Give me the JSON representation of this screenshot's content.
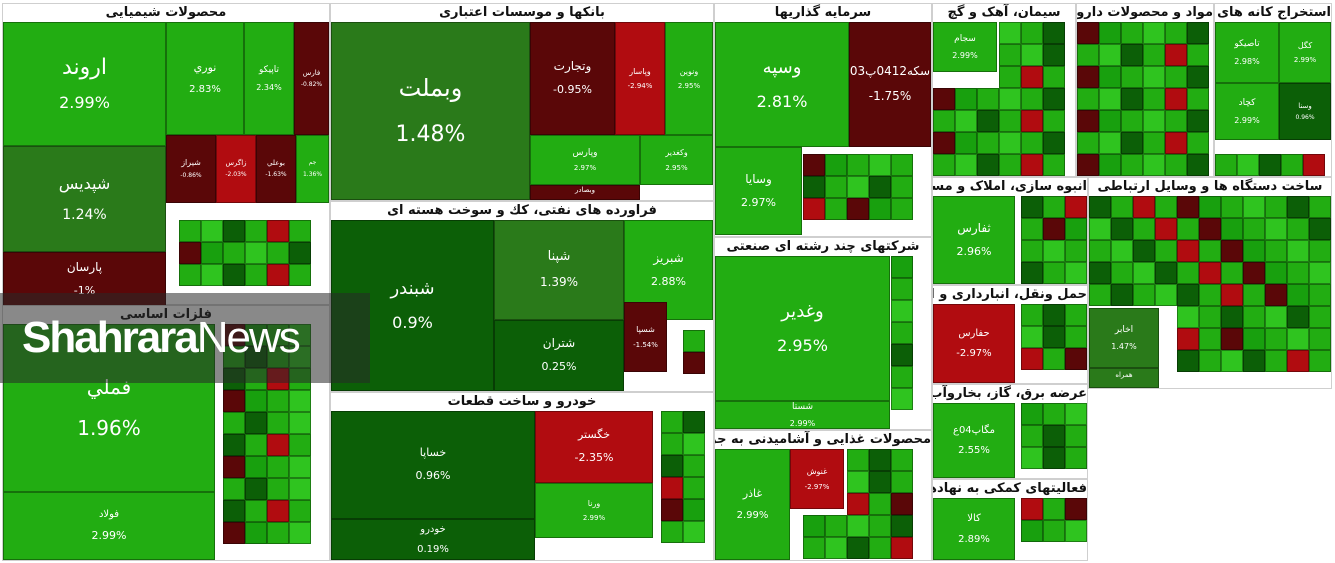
{
  "brand": {
    "word_bold": "Shahrara",
    "word_regular": "News"
  },
  "colors": {
    "strong_positive": "#18a00e",
    "positive": "#22ad12",
    "light_positive": "#2fc41f",
    "dark_positive": "#0c5f07",
    "neutral": "#2a7a1a",
    "negative": "#b10c10",
    "dark_negative": "#5a0708"
  },
  "sectors": [
    {
      "title": "محصولات شیمیایی",
      "tiles": [
        {
          "name": "اروند",
          "change": "2.99%",
          "tone": "positive"
        },
        {
          "name": "نوري",
          "change": "2.83%",
          "tone": "positive"
        },
        {
          "name": "تاپيكو",
          "change": "2.34%",
          "tone": "positive"
        },
        {
          "name": "فارس",
          "change": "-0.82%",
          "tone": "dark_negative"
        },
        {
          "name": "شپديس",
          "change": "1.24%",
          "tone": "neutral"
        },
        {
          "name": "شيراز",
          "change": "-0.86%",
          "tone": "dark_negative"
        },
        {
          "name": "زاگرس",
          "change": "-2.03%",
          "tone": "negative"
        },
        {
          "name": "بوعلي",
          "change": "-1.63%",
          "tone": "dark_negative"
        },
        {
          "name": "جم",
          "change": "1.36%",
          "tone": "positive"
        },
        {
          "name": "پارسان",
          "change": "-1%",
          "tone": "dark_negative"
        }
      ]
    },
    {
      "title": "بانکها و موسسات اعتباری",
      "tiles": [
        {
          "name": "وبملت",
          "change": "1.48%",
          "tone": "neutral"
        },
        {
          "name": "وتجارت",
          "change": "-0.95%",
          "tone": "dark_negative"
        },
        {
          "name": "وپاسار",
          "change": "-2.94%",
          "tone": "negative"
        },
        {
          "name": "ونوين",
          "change": "2.95%",
          "tone": "positive"
        },
        {
          "name": "وپارس",
          "change": "2.97%",
          "tone": "positive"
        },
        {
          "name": "وكغدير",
          "change": "2.95%",
          "tone": "positive"
        },
        {
          "name": "وبصادر",
          "change": "",
          "tone": "dark_negative"
        }
      ]
    },
    {
      "title": "سرمایه گذاریها",
      "tiles": [
        {
          "name": "وسپه",
          "change": "2.81%",
          "tone": "positive"
        },
        {
          "name": "سكه0412پ03",
          "change": "-1.75%",
          "tone": "dark_negative"
        },
        {
          "name": "وسايا",
          "change": "2.97%",
          "tone": "positive"
        }
      ]
    },
    {
      "title": "سیمان، آهک و گچ",
      "tiles": [
        {
          "name": "سجام",
          "change": "2.99%",
          "tone": "positive"
        }
      ]
    },
    {
      "title": "مواد و محصولات دارویی",
      "tiles": []
    },
    {
      "title": "استخراج کانه های فلزی",
      "tiles": [
        {
          "name": "تاصيكو",
          "change": "2.98%",
          "tone": "positive"
        },
        {
          "name": "كگل",
          "change": "2.99%",
          "tone": "positive"
        },
        {
          "name": "كچاد",
          "change": "2.99%",
          "tone": "positive"
        },
        {
          "name": "وسنا",
          "change": "0.96%",
          "tone": "dark_positive"
        }
      ]
    },
    {
      "title": "فراورده های نفتی، کك و سوخت هسته ای",
      "tiles": [
        {
          "name": "شبندر",
          "change": "0.9%",
          "tone": "dark_positive"
        },
        {
          "name": "شپنا",
          "change": "1.39%",
          "tone": "neutral"
        },
        {
          "name": "شبريز",
          "change": "2.88%",
          "tone": "positive"
        },
        {
          "name": "شتران",
          "change": "0.25%",
          "tone": "dark_positive"
        },
        {
          "name": "شسپا",
          "change": "-1.54%",
          "tone": "dark_negative"
        }
      ]
    },
    {
      "title": "شرکتهای چند رشته ای صنعتی",
      "tiles": [
        {
          "name": "وغدير",
          "change": "2.95%",
          "tone": "positive"
        },
        {
          "name": "شستا",
          "change": "2.99%",
          "tone": "positive"
        }
      ]
    },
    {
      "title": "انبوه سازی، املاک و مستغلات",
      "tiles": [
        {
          "name": "ثفارس",
          "change": "2.96%",
          "tone": "positive"
        }
      ]
    },
    {
      "title": "ساخت دستگاه ها و وسایل ارتباطی",
      "tiles": [
        {
          "name": "اخابر",
          "change": "1.47%",
          "tone": "neutral"
        },
        {
          "name": "همراه",
          "change": "",
          "tone": "neutral"
        }
      ]
    },
    {
      "title": "فلزات اساسی",
      "tiles": [
        {
          "name": "فملي",
          "change": "1.96%",
          "tone": "positive"
        },
        {
          "name": "فولاد",
          "change": "2.99%",
          "tone": "positive"
        }
      ]
    },
    {
      "title": "خودرو و ساخت قطعات",
      "tiles": [
        {
          "name": "خساپا",
          "change": "0.96%",
          "tone": "dark_positive"
        },
        {
          "name": "خگستر",
          "change": "-2.35%",
          "tone": "negative"
        },
        {
          "name": "ورنا",
          "change": "2.99%",
          "tone": "positive"
        },
        {
          "name": "خودرو",
          "change": "0.19%",
          "tone": "dark_positive"
        }
      ]
    },
    {
      "title": "حمل ونقل، انبارداری و ارتباطات",
      "tiles": [
        {
          "name": "حفارس",
          "change": "-2.97%",
          "tone": "negative"
        }
      ]
    },
    {
      "title": "عرضه برق، گاز، بخاروآب گرم",
      "tiles": [
        {
          "name": "مگاپ04ع",
          "change": "2.55%",
          "tone": "positive"
        }
      ]
    },
    {
      "title": "فعالیتهای کمکی به نهادهای مالی واسط",
      "tiles": [
        {
          "name": "كالا",
          "change": "2.89%",
          "tone": "positive"
        }
      ]
    },
    {
      "title": "محصولات غذایی و آشامیدنی به جز قند و شکر",
      "tiles": [
        {
          "name": "غاذر",
          "change": "2.99%",
          "tone": "positive"
        },
        {
          "name": "غنوش",
          "change": "-2.97%",
          "tone": "negative"
        }
      ]
    }
  ]
}
